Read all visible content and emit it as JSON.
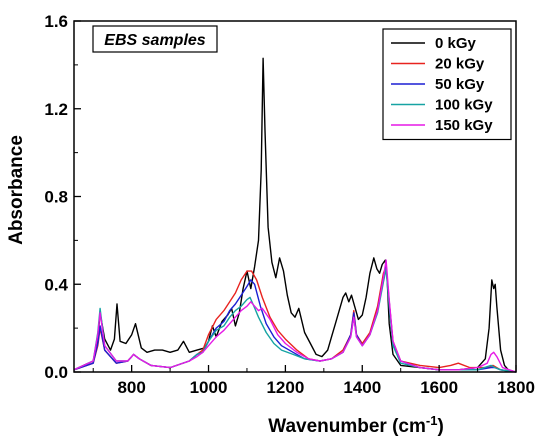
{
  "chart_data": {
    "type": "line",
    "annotation": "EBS samples",
    "xlabel_main": "Wavenumber (cm",
    "xlabel_sup": "-1",
    "xlabel_close": ")",
    "ylabel": "Absorbance",
    "xlim": [
      650,
      1800
    ],
    "ylim": [
      0,
      1.6
    ],
    "xticks": [
      800,
      1000,
      1200,
      1400,
      1600,
      1800
    ],
    "xtick_labels": [
      "800",
      "1000",
      "1200",
      "1400",
      "1600",
      "1800"
    ],
    "yticks": [
      0.0,
      0.4,
      0.8,
      1.2,
      1.6
    ],
    "ytick_labels": [
      "0.0",
      "0.4",
      "0.8",
      "1.2",
      "1.6"
    ],
    "grid": false,
    "legend_position": "top-right",
    "series": [
      {
        "name": "0 kGy",
        "color": "#000000",
        "x": [
          650,
          700,
          712,
          718,
          730,
          745,
          755,
          762,
          770,
          785,
          800,
          810,
          825,
          840,
          860,
          880,
          900,
          920,
          935,
          950,
          970,
          990,
          1000,
          1010,
          1020,
          1035,
          1050,
          1060,
          1070,
          1080,
          1090,
          1100,
          1110,
          1120,
          1130,
          1137,
          1142,
          1147,
          1155,
          1165,
          1175,
          1185,
          1195,
          1205,
          1215,
          1225,
          1235,
          1250,
          1265,
          1280,
          1295,
          1310,
          1320,
          1330,
          1340,
          1350,
          1357,
          1365,
          1372,
          1380,
          1390,
          1400,
          1410,
          1420,
          1430,
          1438,
          1445,
          1452,
          1460,
          1465,
          1470,
          1480,
          1500,
          1550,
          1600,
          1650,
          1700,
          1720,
          1730,
          1737,
          1742,
          1746,
          1750,
          1760,
          1770,
          1780,
          1800
        ],
        "y": [
          0.01,
          0.05,
          0.15,
          0.27,
          0.15,
          0.1,
          0.15,
          0.31,
          0.14,
          0.13,
          0.17,
          0.22,
          0.11,
          0.09,
          0.1,
          0.1,
          0.09,
          0.1,
          0.14,
          0.09,
          0.1,
          0.11,
          0.14,
          0.21,
          0.16,
          0.23,
          0.26,
          0.29,
          0.21,
          0.27,
          0.38,
          0.46,
          0.38,
          0.48,
          0.6,
          0.92,
          1.43,
          1.1,
          0.66,
          0.5,
          0.43,
          0.52,
          0.46,
          0.35,
          0.27,
          0.25,
          0.29,
          0.18,
          0.13,
          0.08,
          0.07,
          0.1,
          0.16,
          0.22,
          0.28,
          0.34,
          0.36,
          0.32,
          0.35,
          0.3,
          0.24,
          0.26,
          0.34,
          0.45,
          0.52,
          0.47,
          0.45,
          0.49,
          0.51,
          0.42,
          0.22,
          0.08,
          0.03,
          0.02,
          0.01,
          0.01,
          0.02,
          0.06,
          0.2,
          0.42,
          0.38,
          0.4,
          0.3,
          0.1,
          0.03,
          0.01,
          0.0
        ]
      },
      {
        "name": "20 kGy",
        "color": "#e8231f",
        "x": [
          650,
          700,
          712,
          718,
          730,
          760,
          790,
          805,
          820,
          850,
          900,
          950,
          970,
          985,
          1000,
          1020,
          1040,
          1055,
          1070,
          1085,
          1100,
          1112,
          1125,
          1140,
          1160,
          1180,
          1200,
          1230,
          1260,
          1290,
          1320,
          1350,
          1370,
          1378,
          1385,
          1400,
          1420,
          1440,
          1455,
          1462,
          1470,
          1480,
          1500,
          1550,
          1600,
          1630,
          1650,
          1680,
          1700,
          1730,
          1740,
          1760,
          1800
        ],
        "y": [
          0.01,
          0.04,
          0.12,
          0.2,
          0.1,
          0.04,
          0.05,
          0.08,
          0.06,
          0.03,
          0.02,
          0.05,
          0.08,
          0.1,
          0.17,
          0.24,
          0.28,
          0.32,
          0.36,
          0.42,
          0.46,
          0.46,
          0.42,
          0.34,
          0.25,
          0.19,
          0.15,
          0.1,
          0.06,
          0.05,
          0.06,
          0.1,
          0.17,
          0.28,
          0.17,
          0.13,
          0.18,
          0.3,
          0.45,
          0.48,
          0.32,
          0.14,
          0.05,
          0.03,
          0.02,
          0.03,
          0.04,
          0.02,
          0.02,
          0.02,
          0.03,
          0.01,
          0.0
        ]
      },
      {
        "name": "50 kGy",
        "color": "#1b1fd3",
        "x": [
          650,
          700,
          712,
          718,
          730,
          760,
          790,
          805,
          820,
          850,
          900,
          950,
          970,
          985,
          1000,
          1020,
          1040,
          1055,
          1070,
          1085,
          1100,
          1110,
          1120,
          1135,
          1150,
          1170,
          1190,
          1220,
          1250,
          1290,
          1320,
          1350,
          1370,
          1378,
          1385,
          1400,
          1420,
          1440,
          1455,
          1462,
          1470,
          1480,
          1500,
          1550,
          1600,
          1650,
          1700,
          1735,
          1745,
          1760,
          1800
        ],
        "y": [
          0.01,
          0.04,
          0.13,
          0.21,
          0.1,
          0.04,
          0.05,
          0.08,
          0.06,
          0.03,
          0.02,
          0.05,
          0.08,
          0.09,
          0.14,
          0.2,
          0.23,
          0.28,
          0.31,
          0.35,
          0.39,
          0.42,
          0.4,
          0.3,
          0.22,
          0.16,
          0.12,
          0.09,
          0.06,
          0.05,
          0.06,
          0.09,
          0.17,
          0.27,
          0.17,
          0.12,
          0.17,
          0.28,
          0.43,
          0.49,
          0.32,
          0.13,
          0.05,
          0.02,
          0.01,
          0.01,
          0.01,
          0.02,
          0.02,
          0.01,
          0.0
        ]
      },
      {
        "name": "100 kGy",
        "color": "#16a3a3",
        "x": [
          650,
          700,
          712,
          718,
          730,
          760,
          790,
          805,
          820,
          850,
          900,
          950,
          970,
          985,
          1000,
          1020,
          1040,
          1055,
          1070,
          1085,
          1100,
          1108,
          1118,
          1130,
          1150,
          1170,
          1190,
          1220,
          1250,
          1290,
          1320,
          1350,
          1370,
          1378,
          1385,
          1400,
          1420,
          1440,
          1455,
          1462,
          1470,
          1480,
          1500,
          1550,
          1600,
          1650,
          1700,
          1735,
          1745,
          1760,
          1800
        ],
        "y": [
          0.01,
          0.05,
          0.18,
          0.29,
          0.12,
          0.05,
          0.05,
          0.08,
          0.06,
          0.03,
          0.02,
          0.05,
          0.08,
          0.09,
          0.14,
          0.19,
          0.21,
          0.25,
          0.28,
          0.3,
          0.33,
          0.34,
          0.3,
          0.25,
          0.18,
          0.13,
          0.1,
          0.08,
          0.06,
          0.05,
          0.06,
          0.09,
          0.16,
          0.25,
          0.16,
          0.12,
          0.17,
          0.27,
          0.41,
          0.47,
          0.3,
          0.12,
          0.04,
          0.02,
          0.01,
          0.01,
          0.01,
          0.03,
          0.02,
          0.01,
          0.0
        ]
      },
      {
        "name": "150 kGy",
        "color": "#e619e6",
        "x": [
          650,
          700,
          712,
          718,
          730,
          760,
          790,
          805,
          820,
          850,
          900,
          950,
          970,
          985,
          1000,
          1020,
          1040,
          1055,
          1070,
          1085,
          1100,
          1110,
          1120,
          1130,
          1140,
          1160,
          1180,
          1200,
          1230,
          1260,
          1290,
          1320,
          1350,
          1370,
          1378,
          1385,
          1400,
          1420,
          1440,
          1455,
          1462,
          1470,
          1480,
          1500,
          1550,
          1600,
          1650,
          1700,
          1725,
          1735,
          1742,
          1750,
          1765,
          1800
        ],
        "y": [
          0.01,
          0.05,
          0.17,
          0.27,
          0.12,
          0.05,
          0.05,
          0.08,
          0.06,
          0.03,
          0.02,
          0.05,
          0.07,
          0.09,
          0.12,
          0.16,
          0.19,
          0.22,
          0.25,
          0.28,
          0.3,
          0.32,
          0.3,
          0.28,
          0.29,
          0.24,
          0.17,
          0.13,
          0.09,
          0.06,
          0.05,
          0.06,
          0.09,
          0.16,
          0.25,
          0.16,
          0.12,
          0.17,
          0.28,
          0.43,
          0.51,
          0.33,
          0.14,
          0.05,
          0.02,
          0.01,
          0.01,
          0.02,
          0.04,
          0.08,
          0.09,
          0.07,
          0.02,
          0.0
        ]
      }
    ]
  }
}
